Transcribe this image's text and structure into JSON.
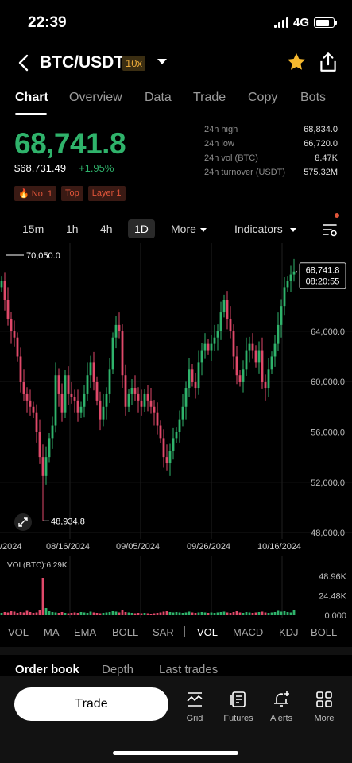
{
  "status_bar": {
    "time": "22:39",
    "network": "4G"
  },
  "header": {
    "pair": "BTC/USDT",
    "leverage": "10x",
    "favorite": true
  },
  "tabs": [
    {
      "label": "Chart",
      "active": true
    },
    {
      "label": "Overview"
    },
    {
      "label": "Data"
    },
    {
      "label": "Trade"
    },
    {
      "label": "Copy"
    },
    {
      "label": "Bots"
    }
  ],
  "price": {
    "last": "68,741.8",
    "usd": "$68,731.49",
    "change": "+1.95%",
    "color_up": "#2fb36b"
  },
  "badges": [
    "🔥 No. 1",
    "Top",
    "Layer 1"
  ],
  "stats": [
    {
      "label": "24h high",
      "value": "68,834.0"
    },
    {
      "label": "24h low",
      "value": "66,720.0"
    },
    {
      "label": "24h vol (BTC)",
      "value": "8.47K"
    },
    {
      "label": "24h turnover (USDT)",
      "value": "575.32M"
    }
  ],
  "intervals": {
    "items": [
      "15m",
      "1h",
      "4h",
      "1D"
    ],
    "active": "1D",
    "more": "More",
    "indicators": "Indicators"
  },
  "chart_data": {
    "type": "candlestick",
    "y_ticks": [
      "64,000.0",
      "60,000.0",
      "56,000.0",
      "52,000.0",
      "48,000.0"
    ],
    "ylim": [
      47500,
      71000
    ],
    "high_marker": "70,050.0",
    "low_marker": "48,934.8",
    "current_price": "68,741.8",
    "countdown": "08:20:55",
    "x_ticks": [
      "/2024",
      "08/16/2024",
      "09/05/2024",
      "09/26/2024",
      "10/16/2024"
    ],
    "closes": [
      68000,
      66500,
      65000,
      64000,
      63500,
      62000,
      60000,
      59000,
      58500,
      58000,
      57500,
      56000,
      54000,
      52500,
      54000,
      55500,
      56500,
      60500,
      59000,
      57500,
      60500,
      59000,
      58800,
      58500,
      57500,
      58000,
      59000,
      60500,
      61500,
      60000,
      58500,
      57000,
      58000,
      59000,
      61000,
      63500,
      64500,
      64000,
      60500,
      58000,
      59000,
      59500,
      59000,
      58500,
      58000,
      59000,
      58500,
      58000,
      57500,
      56500,
      55500,
      54000,
      53500,
      54500,
      55500,
      56000,
      57000,
      58000,
      59500,
      61000,
      60000,
      59500,
      61500,
      62500,
      63000,
      62500,
      63000,
      63500,
      64000,
      65500,
      66500,
      65000,
      64000,
      62000,
      60500,
      60000,
      61000,
      62500,
      63000,
      62500,
      61500,
      62500,
      60000,
      59500,
      61000,
      62000,
      63000,
      64500,
      66000,
      67500,
      68000,
      68500,
      68741.8
    ],
    "volume": {
      "label": "VOL(BTC):6.29K",
      "y_ticks": [
        "48.96K",
        "24.48K",
        "0.000"
      ],
      "ylim": [
        0,
        50000
      ],
      "values": [
        3000,
        4000,
        3500,
        5000,
        4500,
        3000,
        4000,
        3500,
        5500,
        4000,
        3000,
        3500,
        6000,
        47000,
        9000,
        5000,
        4000,
        3500,
        3000,
        4000,
        3000,
        2500,
        3000,
        3500,
        3000,
        4000,
        3500,
        3000,
        4500,
        3500,
        3000,
        2500,
        3000,
        3500,
        4000,
        5000,
        4500,
        3500,
        7000,
        4000,
        3500,
        3000,
        2500,
        3000,
        2500,
        3000,
        2500,
        2000,
        2500,
        3000,
        3500,
        4500,
        5000,
        4000,
        3500,
        4000,
        3500,
        3000,
        3500,
        4500,
        3500,
        3000,
        3500,
        4000,
        3500,
        3000,
        3500,
        3000,
        3500,
        4000,
        4500,
        3500,
        3000,
        4000,
        5000,
        3500,
        3000,
        4000,
        3500,
        3000,
        3500,
        4000,
        4500,
        3500,
        3000,
        3500,
        4000,
        5500,
        4500,
        5000,
        4000,
        3500,
        6290
      ]
    }
  },
  "indicator_bar": {
    "main": [
      "VOL",
      "MA",
      "EMA",
      "BOLL",
      "SAR"
    ],
    "sub": [
      "VOL",
      "MACD",
      "KDJ",
      "BOLL"
    ],
    "sub_active": "VOL"
  },
  "book_tabs": [
    {
      "label": "Order book",
      "active": true
    },
    {
      "label": "Depth"
    },
    {
      "label": "Last trades"
    }
  ],
  "bottom": {
    "trade": "Trade",
    "nav": [
      {
        "label": "Grid",
        "icon": "grid-chart-icon"
      },
      {
        "label": "Futures",
        "icon": "futures-icon"
      },
      {
        "label": "Alerts",
        "icon": "alert-bell-icon"
      },
      {
        "label": "More",
        "icon": "apps-icon"
      }
    ]
  },
  "colors": {
    "up": "#2fb36b",
    "down": "#e0496a",
    "accent": "#e8a93a"
  }
}
